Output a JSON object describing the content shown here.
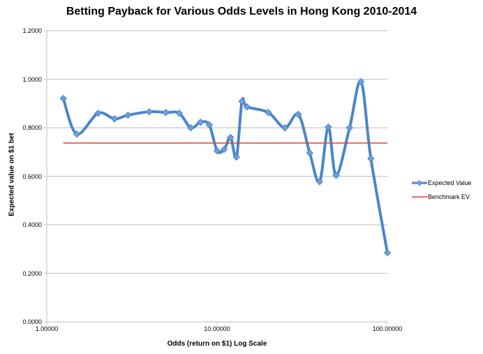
{
  "chart_data": {
    "type": "line",
    "title": "Betting Payback for Various Odds Levels in Hong Kong 2010-2014",
    "xlabel": "Odds (return on $1) Log Scale",
    "ylabel": "Expected value on $1 bet",
    "x_scale": "log",
    "xlim": [
      1,
      100
    ],
    "ylim": [
      0,
      1.2
    ],
    "x_tick_labels": [
      "1.00000",
      "10.00000",
      "100.00000"
    ],
    "y_tick_labels": [
      "0.0000",
      "0.2000",
      "0.4000",
      "0.6000",
      "0.8000",
      "1.0000",
      "1.2000"
    ],
    "grid": "horizontal",
    "legend_position": "right",
    "series": [
      {
        "name": "Expected Value",
        "color": "#4A86C8",
        "style": "smooth line with diamond markers",
        "x": [
          1.25,
          1.5,
          2,
          2.5,
          3,
          4,
          5,
          6,
          7,
          8,
          9,
          10,
          11,
          12,
          13,
          14,
          15,
          20,
          25,
          30,
          35,
          40,
          45,
          50,
          60,
          70,
          80,
          100
        ],
        "values": [
          0.921,
          0.774,
          0.86,
          0.837,
          0.852,
          0.866,
          0.863,
          0.86,
          0.8,
          0.823,
          0.812,
          0.705,
          0.711,
          0.76,
          0.679,
          0.909,
          0.886,
          0.863,
          0.8,
          0.855,
          0.696,
          0.578,
          0.803,
          0.604,
          0.8,
          0.99,
          0.673,
          0.285
        ]
      },
      {
        "name": "Benchmark EV",
        "color": "#E0413A",
        "style": "flat line",
        "x": [
          1.25,
          100
        ],
        "values": [
          0.737,
          0.737
        ]
      }
    ]
  },
  "legend": {
    "items": [
      {
        "label": "Expected Value",
        "color": "#4A86C8"
      },
      {
        "label": "Benchmark EV",
        "color": "#E0413A"
      }
    ]
  }
}
